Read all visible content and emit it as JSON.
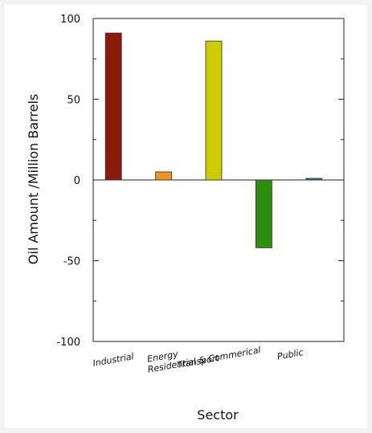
{
  "chart_data": {
    "type": "bar",
    "title": "",
    "xlabel": "Sector",
    "ylabel": "Oil Amount /Million Barrels",
    "categories": [
      "Industrial",
      "Energy",
      "Transport",
      "Residential & Commerical",
      "Public"
    ],
    "values": [
      91,
      5,
      86,
      -42,
      1
    ],
    "colors": [
      "#8b1a0a",
      "#f0941c",
      "#cccc00",
      "#2e8f0e",
      "#3a6f8f"
    ],
    "ylim": [
      -100,
      100
    ],
    "yticks": [
      -100,
      -50,
      0,
      50,
      100
    ],
    "ytick_labels": [
      "-100",
      "-50",
      "0",
      "50",
      "100"
    ],
    "grid": false,
    "legend": "none"
  }
}
